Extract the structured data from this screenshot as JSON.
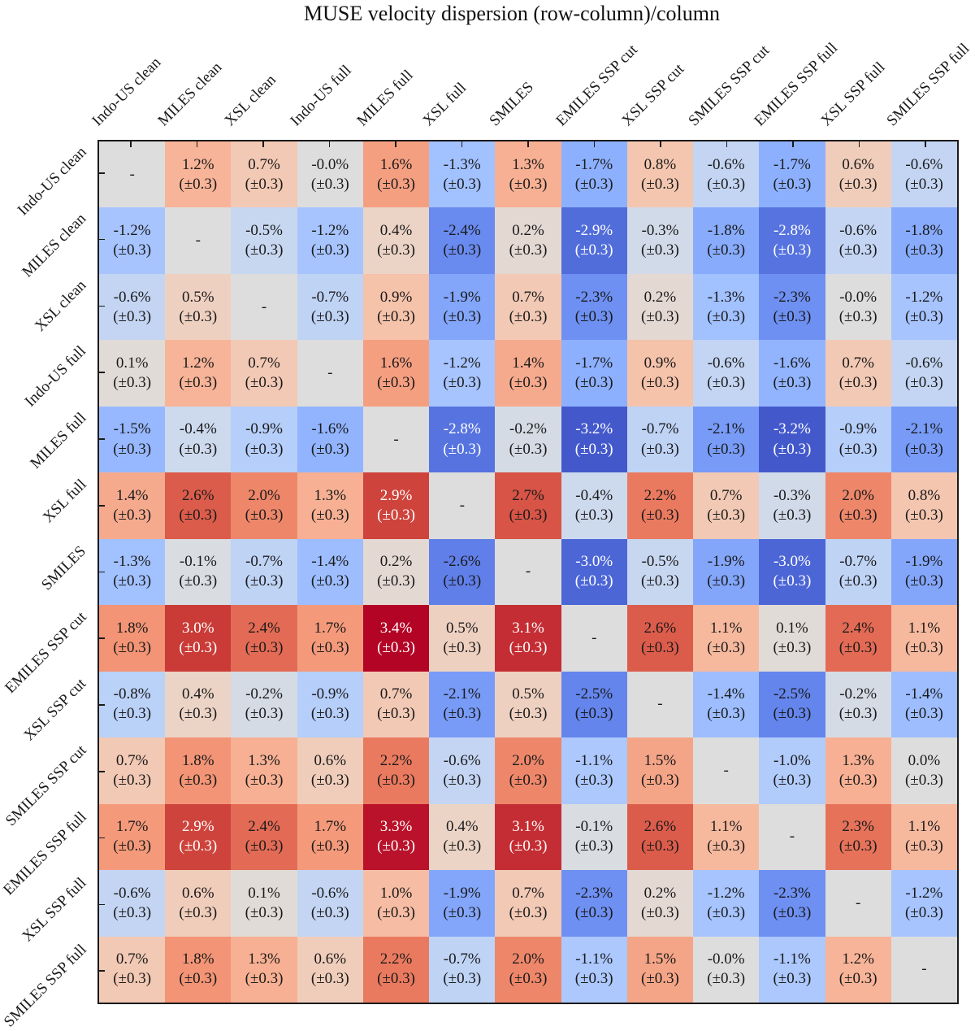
{
  "title": "MUSE velocity dispersion (row-column)/column",
  "chart_data": {
    "type": "heatmap",
    "rows": [
      "Indo-US clean",
      "MILES clean",
      "XSL clean",
      "Indo-US full",
      "MILES full",
      "XSL full",
      "SMILES",
      "EMILES SSP cut",
      "XSL SSP cut",
      "SMILES SSP cut",
      "EMILES SSP full",
      "XSL SSP full",
      "SMILES SSP full"
    ],
    "columns": [
      "Indo-US clean",
      "MILES clean",
      "XSL clean",
      "Indo-US full",
      "MILES full",
      "XSL full",
      "SMILES",
      "EMILES SSP cut",
      "XSL SSP cut",
      "SMILES SSP cut",
      "EMILES SSP full",
      "XSL SSP full",
      "SMILES SSP full"
    ],
    "cell_values": [
      [
        "-",
        "1.2",
        "0.7",
        "-0.0",
        "1.6",
        "-1.3",
        "1.3",
        "-1.7",
        "0.8",
        "-0.6",
        "-1.7",
        "0.6",
        "-0.6"
      ],
      [
        "-1.2",
        "-",
        "-0.5",
        "-1.2",
        "0.4",
        "-2.4",
        "0.2",
        "-2.9",
        "-0.3",
        "-1.8",
        "-2.8",
        "-0.6",
        "-1.8"
      ],
      [
        "-0.6",
        "0.5",
        "-",
        "-0.7",
        "0.9",
        "-1.9",
        "0.7",
        "-2.3",
        "0.2",
        "-1.3",
        "-2.3",
        "-0.0",
        "-1.2"
      ],
      [
        "0.1",
        "1.2",
        "0.7",
        "-",
        "1.6",
        "-1.2",
        "1.4",
        "-1.7",
        "0.9",
        "-0.6",
        "-1.6",
        "0.7",
        "-0.6"
      ],
      [
        "-1.5",
        "-0.4",
        "-0.9",
        "-1.6",
        "-",
        "-2.8",
        "-0.2",
        "-3.2",
        "-0.7",
        "-2.1",
        "-3.2",
        "-0.9",
        "-2.1"
      ],
      [
        "1.4",
        "2.6",
        "2.0",
        "1.3",
        "2.9",
        "-",
        "2.7",
        "-0.4",
        "2.2",
        "0.7",
        "-0.3",
        "2.0",
        "0.8"
      ],
      [
        "-1.3",
        "-0.1",
        "-0.7",
        "-1.4",
        "0.2",
        "-2.6",
        "-",
        "-3.0",
        "-0.5",
        "-1.9",
        "-3.0",
        "-0.7",
        "-1.9"
      ],
      [
        "1.8",
        "3.0",
        "2.4",
        "1.7",
        "3.4",
        "0.5",
        "3.1",
        "-",
        "2.6",
        "1.1",
        "0.1",
        "2.4",
        "1.1"
      ],
      [
        "-0.8",
        "0.4",
        "-0.2",
        "-0.9",
        "0.7",
        "-2.1",
        "0.5",
        "-2.5",
        "-",
        "-1.4",
        "-2.5",
        "-0.2",
        "-1.4"
      ],
      [
        "0.7",
        "1.8",
        "1.3",
        "0.6",
        "2.2",
        "-0.6",
        "2.0",
        "-1.1",
        "1.5",
        "-",
        "-1.0",
        "1.3",
        "0.0"
      ],
      [
        "1.7",
        "2.9",
        "2.4",
        "1.7",
        "3.3",
        "0.4",
        "3.1",
        "-0.1",
        "2.6",
        "1.1",
        "-",
        "2.3",
        "1.1"
      ],
      [
        "-0.6",
        "0.6",
        "0.1",
        "-0.6",
        "1.0",
        "-1.9",
        "0.7",
        "-2.3",
        "0.2",
        "-1.2",
        "-2.3",
        "-",
        "-1.2"
      ],
      [
        "0.7",
        "1.8",
        "1.3",
        "0.6",
        "2.2",
        "-0.7",
        "2.0",
        "-1.1",
        "1.5",
        "-0.0",
        "-1.1",
        "1.2",
        "-"
      ]
    ],
    "value_suffix": "%",
    "uncertainty_label": "(±0.3)",
    "diagonal_label": "-",
    "vmin": -3.4,
    "vmax": 3.4,
    "colormap_name": "coolwarm",
    "colormap_stops": [
      [
        0,
        "#3B4CC0"
      ],
      [
        0.0625,
        "#4D68D7"
      ],
      [
        0.125,
        "#6282EA"
      ],
      [
        0.1875,
        "#779AF7"
      ],
      [
        0.25,
        "#8DB0FE"
      ],
      [
        0.3125,
        "#A3C2FF"
      ],
      [
        0.375,
        "#B8D0F9"
      ],
      [
        0.4375,
        "#CCD9EE"
      ],
      [
        0.5,
        "#DDDDDD"
      ],
      [
        0.5625,
        "#ECD3C5"
      ],
      [
        0.625,
        "#F5C4AD"
      ],
      [
        0.6875,
        "#F7B194"
      ],
      [
        0.75,
        "#F49A7B"
      ],
      [
        0.8125,
        "#EC7F63"
      ],
      [
        0.875,
        "#DE604D"
      ],
      [
        0.9375,
        "#CB3E38"
      ],
      [
        1,
        "#B40426"
      ]
    ],
    "text_color_dark": "#1a1a1a",
    "text_color_light": "#ffffff",
    "white_text_abs_threshold": 2.8,
    "axes_color": "#1a1a1a",
    "grid": "off",
    "legend": "none"
  }
}
